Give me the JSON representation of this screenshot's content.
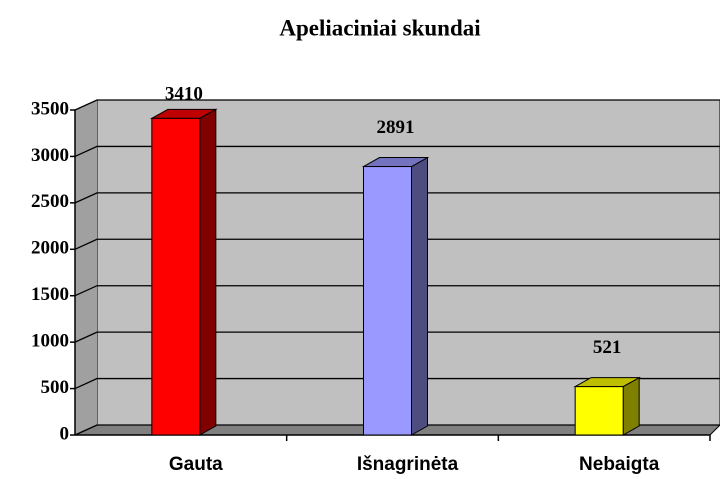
{
  "chart_data": {
    "type": "bar",
    "title": "Apeliaciniai skundai",
    "categories": [
      "Gauta",
      "Išnagrinėta",
      "Nebaigta"
    ],
    "values": [
      3410,
      2891,
      521
    ],
    "colors": [
      "#ff0000",
      "#9999ff",
      "#ffff00"
    ],
    "ylim": [
      0,
      3500
    ],
    "yticks": [
      0,
      500,
      1000,
      1500,
      2000,
      2500,
      3000,
      3500
    ],
    "grid": true
  }
}
